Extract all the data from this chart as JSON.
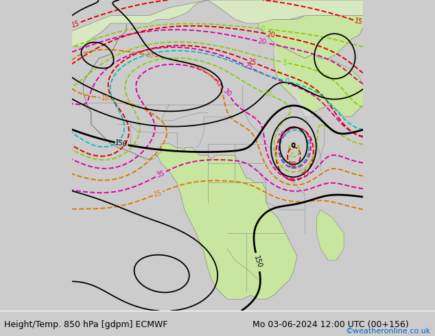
{
  "title_left": "Height/Temp. 850 hPa [gdpm] ECMWF",
  "title_right": "Mo 03-06-2024 12:00 UTC (00+156)",
  "copyright": "©weatheronline.co.uk",
  "fig_width": 6.34,
  "fig_height": 4.9,
  "dpi": 100,
  "title_fontsize": 9,
  "copyright_color": "#0066cc",
  "copyright_fontsize": 8,
  "ocean_color": "#d8d8d8",
  "land_color": "#c8e6a0",
  "border_color": "#888888",
  "black_contour_color": "#000000",
  "red_contour_color": "#dd0000",
  "orange_contour_color": "#dd7700",
  "magenta_contour_color": "#dd00aa",
  "green_contour_color": "#88cc00",
  "cyan_contour_color": "#00bbbb",
  "bottom_bar_color": "#cccccc"
}
